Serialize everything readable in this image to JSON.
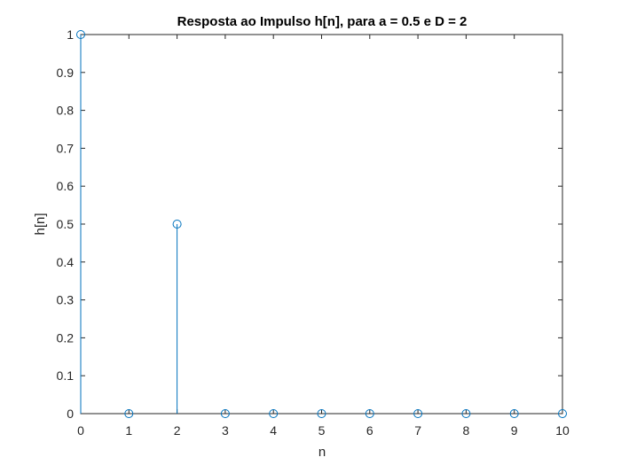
{
  "chart_data": {
    "type": "stem",
    "title": "Resposta ao Impulso h[n], para a = 0.5 e D = 2",
    "xlabel": "n",
    "ylabel": "h[n]",
    "xlim": [
      0,
      10
    ],
    "ylim": [
      0,
      1
    ],
    "x_ticks": [
      "0",
      "1",
      "2",
      "3",
      "4",
      "5",
      "6",
      "7",
      "8",
      "9",
      "10"
    ],
    "y_ticks": [
      "0",
      "0.1",
      "0.2",
      "0.3",
      "0.4",
      "0.5",
      "0.6",
      "0.7",
      "0.8",
      "0.9",
      "1"
    ],
    "grid": false,
    "series": [
      {
        "x": [
          0,
          1,
          2,
          3,
          4,
          5,
          6,
          7,
          8,
          9,
          10
        ],
        "y": [
          1,
          0,
          0.5,
          0,
          0,
          0,
          0,
          0,
          0,
          0,
          0
        ]
      }
    ],
    "colors": {
      "stem": "#0072BD",
      "axes": "#262626"
    }
  }
}
